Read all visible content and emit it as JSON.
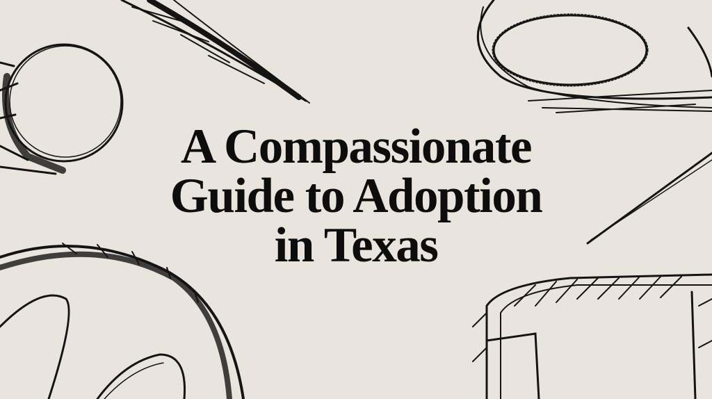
{
  "title": {
    "lines": [
      "A Compassionate",
      "Guide to Adoption",
      "in Texas"
    ]
  },
  "colors": {
    "background": "#e9e4de",
    "ink": "#141414"
  },
  "illustrations": [
    "circle-sketch",
    "quill-sketch",
    "loop-sketch",
    "needle-sketch",
    "oval-sketch",
    "curl-sketch",
    "box-sketch"
  ]
}
